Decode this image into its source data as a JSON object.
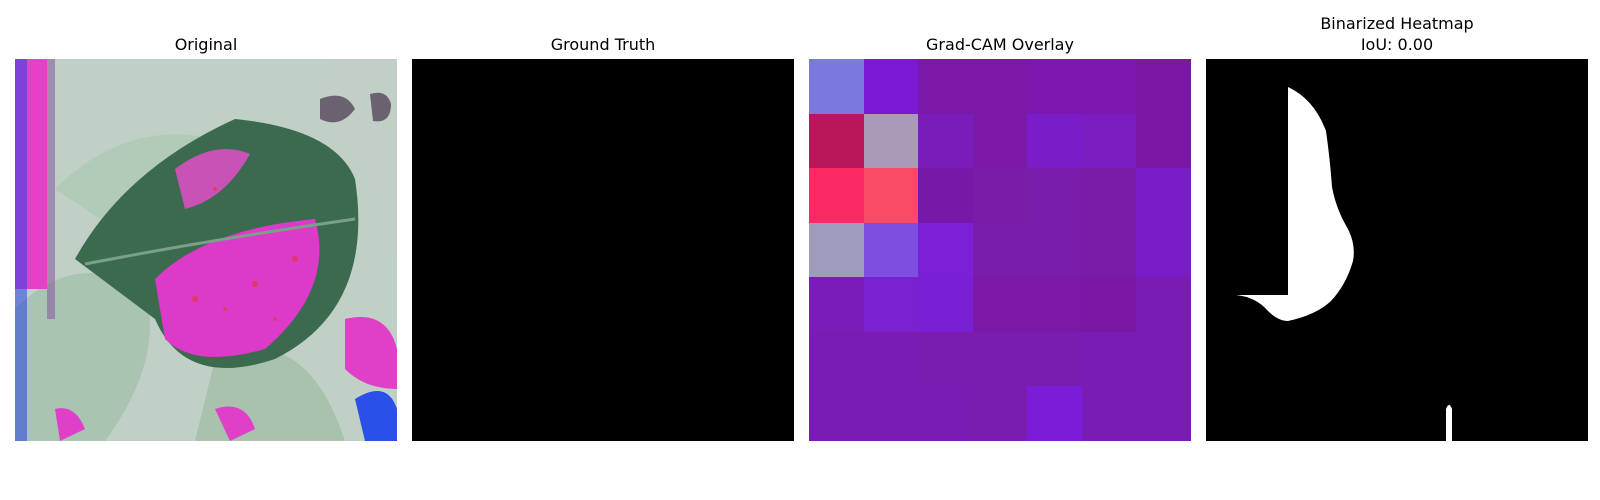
{
  "panels": [
    {
      "title": "Original"
    },
    {
      "title": "Ground Truth"
    },
    {
      "title": "Grad-CAM Overlay"
    },
    {
      "title_line1": "Binarized Heatmap",
      "title_line2": "IoU: 0.00"
    }
  ],
  "colors": {
    "gradcam_cells": [
      "#7b78e0",
      "#7a18d4",
      "#7a18a8",
      "#7a18a8",
      "#7a18b0",
      "#7a18b0",
      "#7818a4",
      "#b8185a",
      "#a89ab8",
      "#7a1cb8",
      "#7a18a8",
      "#7a1cc8",
      "#7a1cc0",
      "#7818a4",
      "#fb2a64",
      "#fb4a64",
      "#7818a8",
      "#7a1ca8",
      "#7a1cac",
      "#7a1ca8",
      "#7a1cc8",
      "#9e9cbc",
      "#7d4ee0",
      "#7c20d8",
      "#7a1cac",
      "#7a1cac",
      "#7a1ca8",
      "#7a1cc8",
      "#7a1cb8",
      "#7a22d0",
      "#7a20d4",
      "#7a18a8",
      "#7a18a8",
      "#7818a4",
      "#7a1cb4",
      "#7a1cb4",
      "#7a1cb4",
      "#7a1cb0",
      "#7a1cb0",
      "#7a1cb0",
      "#7a1cb4",
      "#7a1cb4",
      "#7a1cb4",
      "#7a1cb4",
      "#7a1cb4",
      "#7a1cb0",
      "#7a1cd8",
      "#7a1cb4",
      "#7a1cb4"
    ]
  }
}
